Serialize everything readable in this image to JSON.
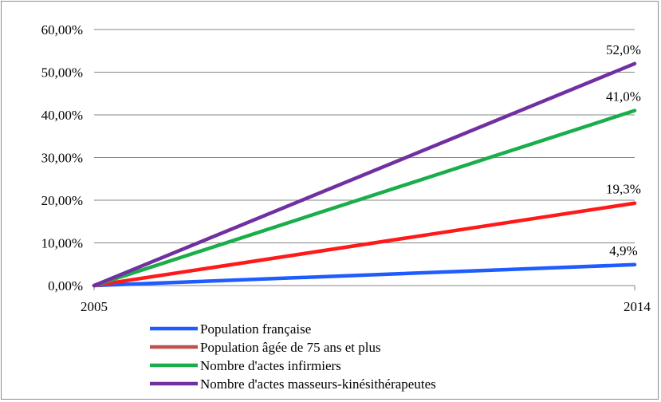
{
  "chart_data": {
    "type": "line",
    "x": [
      "2005",
      "2014"
    ],
    "ylim": [
      0,
      60
    ],
    "y_ticks": [
      "0,00%",
      "10,00%",
      "20,00%",
      "30,00%",
      "40,00%",
      "50,00%",
      "60,00%"
    ],
    "y_tick_values": [
      0,
      10,
      20,
      30,
      40,
      50,
      60
    ],
    "grid": true,
    "legend_position": "bottom",
    "series": [
      {
        "name": "Population française",
        "values": [
          0,
          4.9
        ],
        "color": "#1f5cff",
        "end_label": "4,9%"
      },
      {
        "name": "Population âgée de 75 ans et plus",
        "values": [
          0,
          19.3
        ],
        "color": "#ff1a1a",
        "legend_color": "#c0504d",
        "end_label": "19,3%"
      },
      {
        "name": "Nombre d'actes infirmiers",
        "values": [
          0,
          41.0
        ],
        "color": "#1aae4a",
        "end_label": "41,0%"
      },
      {
        "name": "Nombre d'actes masseurs-kinésithérapeutes",
        "values": [
          0,
          52.0
        ],
        "color": "#7030a0",
        "end_label": "52,0%"
      }
    ]
  }
}
